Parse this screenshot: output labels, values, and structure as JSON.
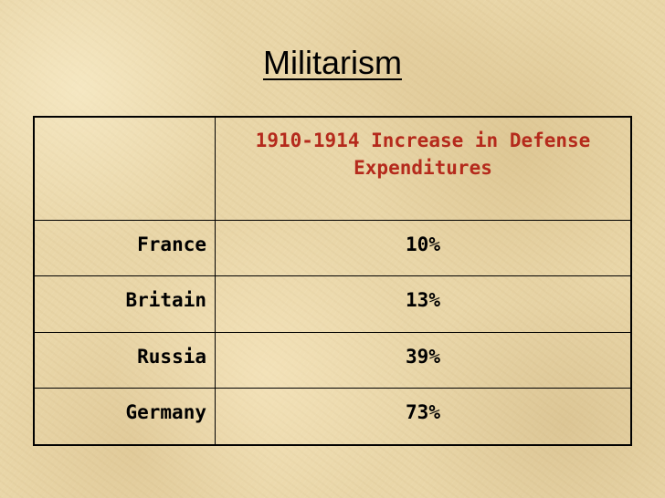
{
  "title": "Militarism",
  "table": {
    "header": {
      "corner": "",
      "column": "1910-1914 Increase in Defense Expenditures"
    },
    "rows": [
      {
        "country": "France",
        "increase": "10%"
      },
      {
        "country": "Britain",
        "increase": "13%"
      },
      {
        "country": "Russia",
        "increase": "39%"
      },
      {
        "country": "Germany",
        "increase": "73%"
      }
    ]
  },
  "colors": {
    "header_text": "#b52a1c",
    "background": "#e9d6a8",
    "text": "#000000"
  }
}
